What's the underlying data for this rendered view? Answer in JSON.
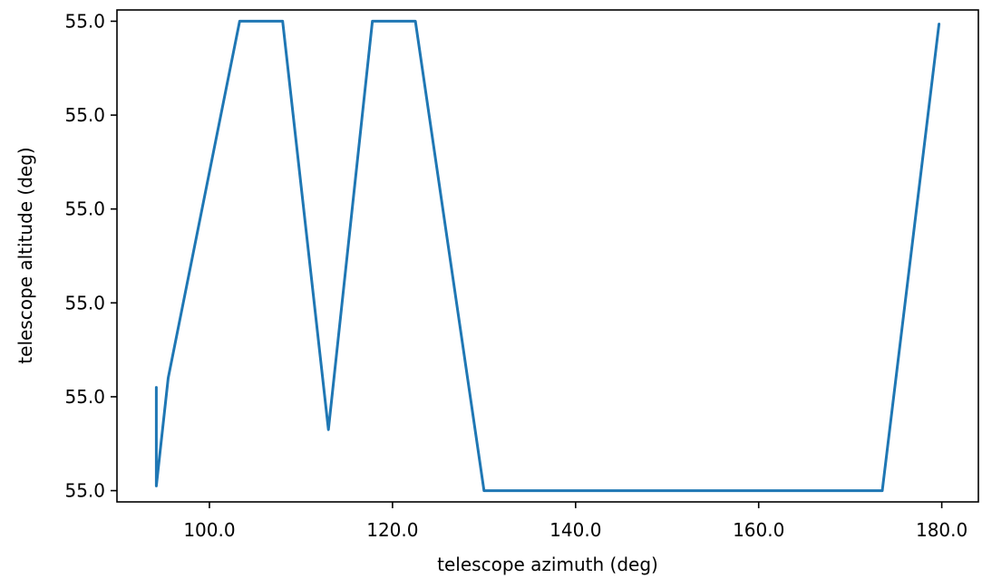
{
  "chart_data": {
    "type": "line",
    "title": "",
    "xlabel": "telescope azimuth (deg)",
    "ylabel": "telescope altitude (deg)",
    "xlim": [
      89.9,
      184.0
    ],
    "ylim": [
      -0.12,
      5.12
    ],
    "x_ticks": [
      {
        "value": 100,
        "label": "100.0"
      },
      {
        "value": 120,
        "label": "120.0"
      },
      {
        "value": 140,
        "label": "140.0"
      },
      {
        "value": 160,
        "label": "160.0"
      },
      {
        "value": 180,
        "label": "180.0"
      }
    ],
    "y_ticks": [
      {
        "value": 0,
        "label": "55.0"
      },
      {
        "value": 1,
        "label": "55.0"
      },
      {
        "value": 2,
        "label": "55.0"
      },
      {
        "value": 3,
        "label": "55.0"
      },
      {
        "value": 4,
        "label": "55.0"
      },
      {
        "value": 5,
        "label": "55.0"
      }
    ],
    "grid": false,
    "series": [
      {
        "color": "#1f77b4",
        "x": [
          94.2,
          94.2,
          95.5,
          103.3,
          108.0,
          113.0,
          117.8,
          122.5,
          130.0,
          173.5,
          179.7
        ],
        "y": [
          1.1,
          0.05,
          1.2,
          5.0,
          5.0,
          0.65,
          5.0,
          5.0,
          0.0,
          0.0,
          4.97
        ]
      }
    ]
  }
}
